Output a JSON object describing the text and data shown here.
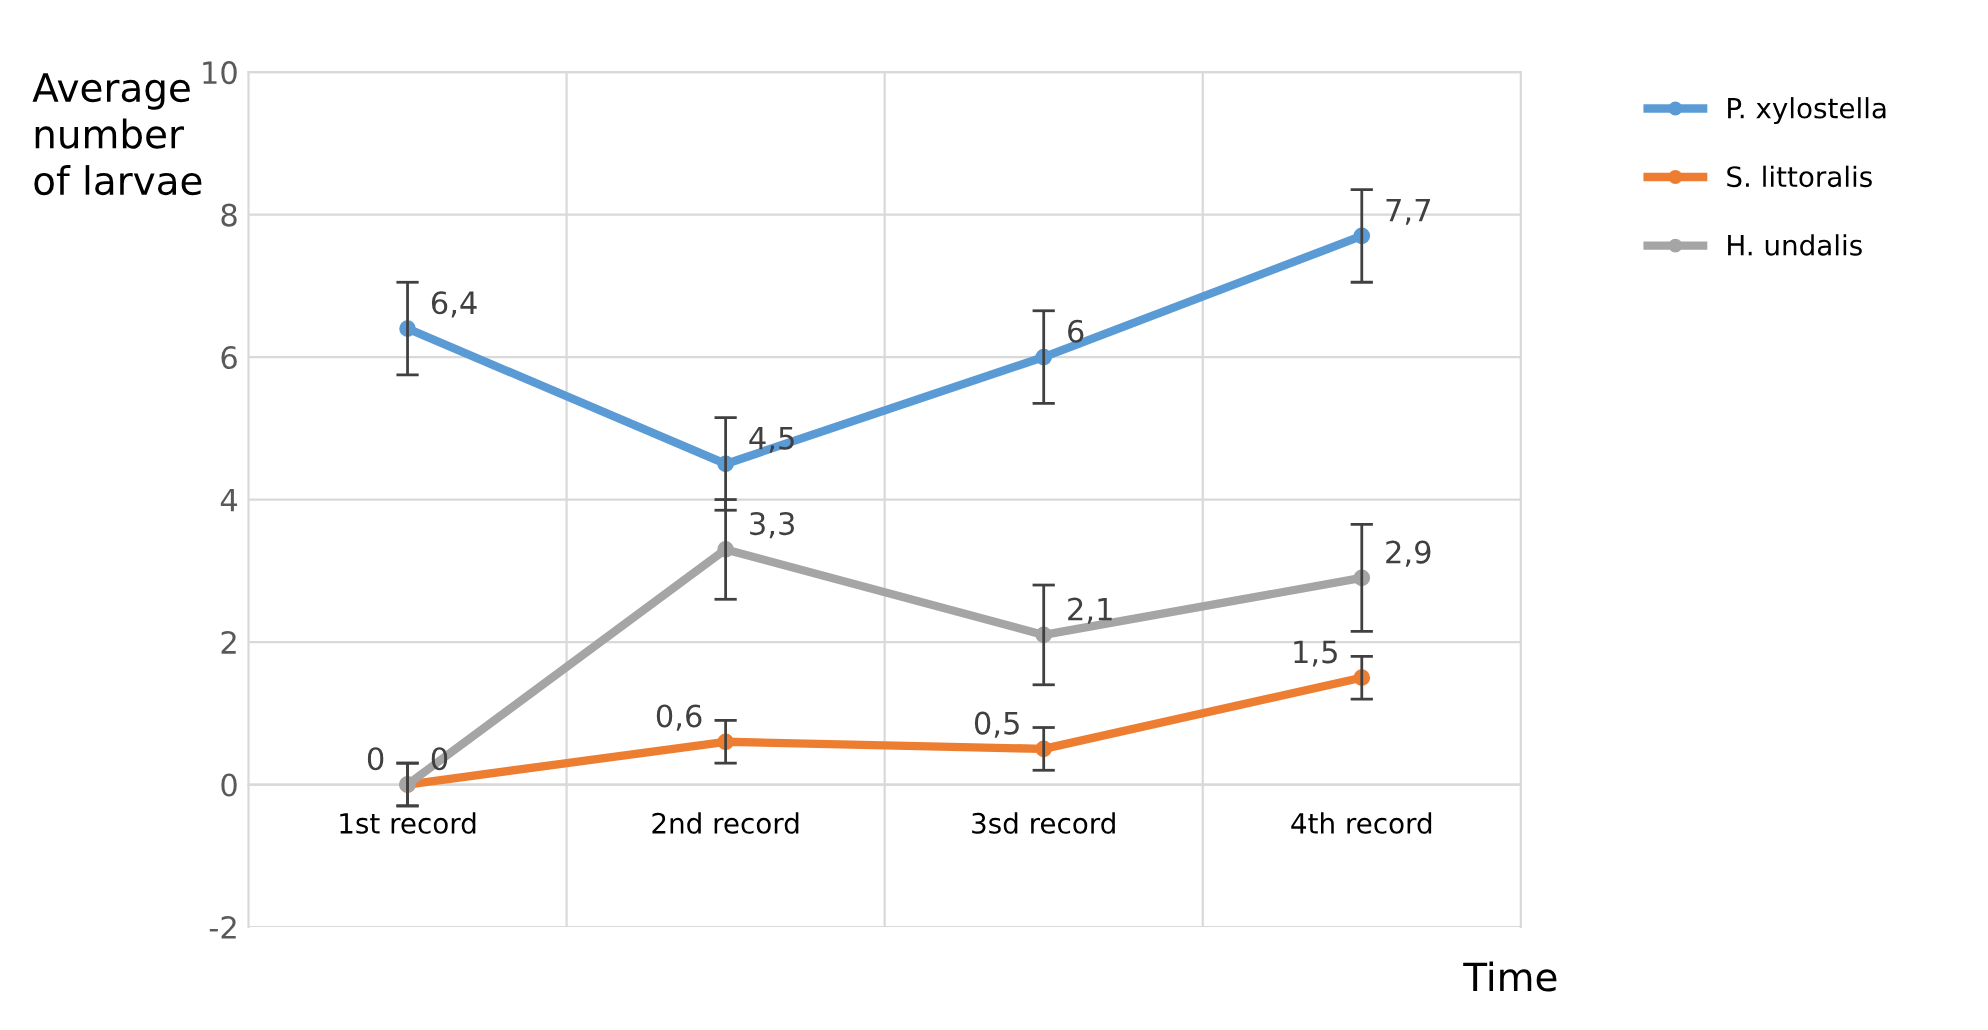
{
  "chart_data": {
    "type": "line",
    "ylabel": "Average\nnumber\nof larvae",
    "xlabel": "Time",
    "categories": [
      "1st record",
      "2nd record",
      "3sd record",
      "4th record"
    ],
    "series": [
      {
        "name": "P. xylostella",
        "color": "#5b9bd5",
        "values": [
          6.4,
          4.5,
          6,
          7.7
        ],
        "errors": [
          0.65,
          0.65,
          0.65,
          0.65
        ],
        "value_labels": [
          "6,4",
          "4,5",
          "6",
          "7,7"
        ]
      },
      {
        "name": "S. littoralis",
        "color": "#ed7d31",
        "values": [
          0,
          0.6,
          0.5,
          1.5
        ],
        "errors": [
          0.3,
          0.3,
          0.3,
          0.3
        ],
        "value_labels": [
          "0",
          "0,6",
          "0,5",
          "1,5"
        ]
      },
      {
        "name": "H. undalis",
        "color": "#a5a5a5",
        "values": [
          0,
          3.3,
          2.1,
          2.9
        ],
        "errors": [
          0.3,
          0.7,
          0.7,
          0.75
        ],
        "value_labels": [
          "0",
          "3,3",
          "2,1",
          "2,9"
        ]
      }
    ],
    "ylim": [
      -2,
      10
    ],
    "yticks": [
      -2,
      0,
      2,
      4,
      6,
      8,
      10
    ],
    "grid": true,
    "legend": "top right",
    "marker": "circle",
    "line_style": "solid"
  }
}
